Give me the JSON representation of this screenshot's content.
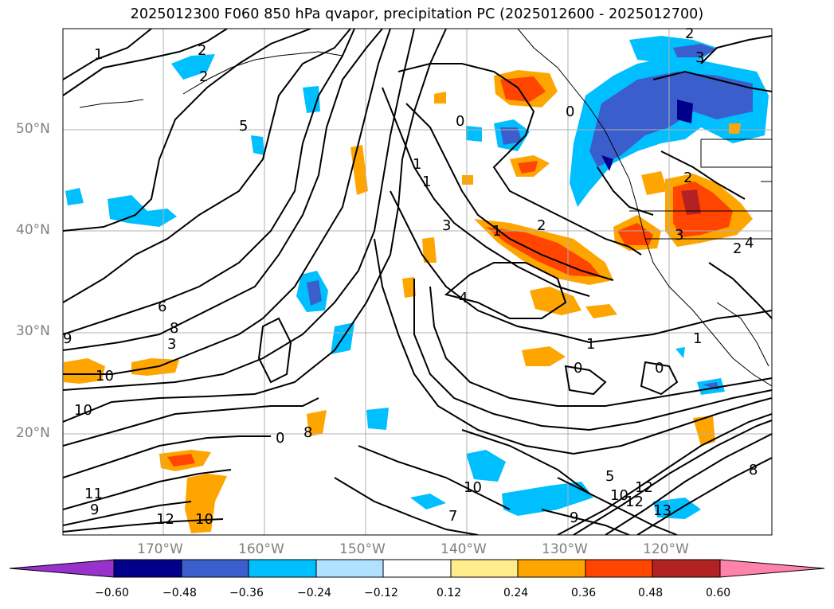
{
  "title": "2025012300 F060 850 hPa qvapor, precipitation PC (2025012600 - 2025012700)",
  "lat_labels": [
    "50°N",
    "40°N",
    "30°N",
    "20°N"
  ],
  "lon_labels": [
    "170°W",
    "160°W",
    "150°W",
    "140°W",
    "130°W",
    "120°W"
  ],
  "colorbar": {
    "ticks": [
      "−0.60",
      "−0.48",
      "−0.36",
      "−0.24",
      "−0.12",
      "0.12",
      "0.24",
      "0.36",
      "0.48",
      "0.60"
    ],
    "colors": [
      "#9932cc",
      "#00008b",
      "#3a5fcd",
      "#00bfff",
      "#b0e2ff",
      "#ffffff",
      "#ffec8b",
      "#ffa500",
      "#ff4500",
      "#b22222",
      "#ff82ab"
    ]
  },
  "contour_labels": [
    "1",
    "2",
    "2",
    "5",
    "0",
    "1",
    "1",
    "3",
    "2",
    "3",
    "1",
    "2",
    "0",
    "2",
    "3",
    "4",
    "2",
    "1",
    "0",
    "0",
    "1",
    "4",
    "6",
    "8",
    "3",
    "9",
    "10",
    "10",
    "0",
    "8",
    "9",
    "11",
    "12",
    "10",
    "7",
    "10",
    "9",
    "12",
    "13",
    "5",
    "10",
    "12",
    "8"
  ]
}
